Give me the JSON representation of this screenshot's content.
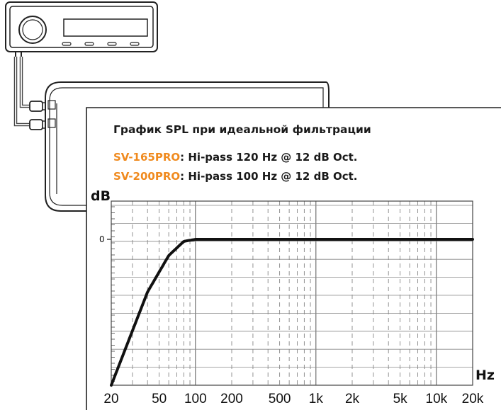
{
  "title": "График SPL при идеальной фильтрации",
  "specs": [
    {
      "model": "SV-165PRO",
      "text": ": Hi-pass 120 Hz @ 12 dB Oct."
    },
    {
      "model": "SV-200PRO",
      "text": ": Hi-pass 100 Hz @ 12 dB Oct."
    }
  ],
  "colors": {
    "accent": "#f08a1e",
    "ink": "#111111"
  },
  "icons": [
    "car-head-unit-icon",
    "amplifier-icon"
  ],
  "chart_data": {
    "type": "line",
    "xlabel": "Hz",
    "ylabel": "dB",
    "x_scale": "log",
    "xlim": [
      20,
      20000
    ],
    "x_ticks": [
      "20",
      "50",
      "100",
      "200",
      "500",
      "1k",
      "2k",
      "5k",
      "10k",
      "20k"
    ],
    "y_ticks": [
      "0"
    ],
    "grid": true,
    "series": [
      {
        "x": [
          20,
          40,
          60,
          80,
          100,
          20000
        ],
        "y": [
          -36,
          -13,
          -4,
          -0.5,
          0,
          0
        ]
      }
    ]
  }
}
